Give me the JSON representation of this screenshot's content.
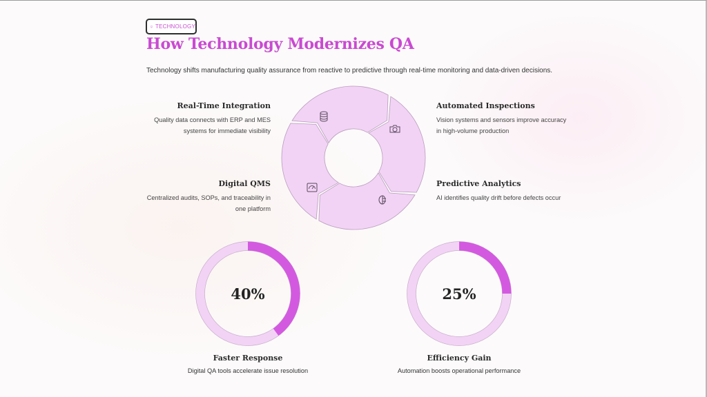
{
  "header": {
    "tag_label": "TECHNOLOGY",
    "tag_icon": "monitor-icon",
    "title": "How Technology Modernizes QA",
    "subtitle": "Technology shifts manufacturing quality assurance from reactive to predictive through real-time monitoring and data-driven decisions."
  },
  "colors": {
    "accent": "#c94ad2",
    "segment_fill": "#f2d3f6",
    "segment_stroke": "#b89cbc",
    "gauge_track": "#f2d3f6",
    "gauge_fill": "#d35ae0"
  },
  "features": [
    {
      "title": "Real-Time Integration",
      "description": "Quality data connects with ERP and MES systems for immediate visibility",
      "icon": "database-icon"
    },
    {
      "title": "Automated Inspections",
      "description": "Vision systems and sensors improve accuracy in high-volume production",
      "icon": "camera-icon"
    },
    {
      "title": "Digital QMS",
      "description": "Centralized audits, SOPs, and traceability in one platform",
      "icon": "gauge-icon"
    },
    {
      "title": "Predictive Analytics",
      "description": "AI identifies quality drift before defects occur",
      "icon": "brain-icon"
    }
  ],
  "metrics": [
    {
      "value": "40%",
      "fraction": 0.4,
      "title": "Faster Response",
      "description": "Digital QA tools accelerate issue resolution"
    },
    {
      "value": "25%",
      "fraction": 0.25,
      "title": "Efficiency Gain",
      "description": "Automation boosts operational performance"
    }
  ]
}
